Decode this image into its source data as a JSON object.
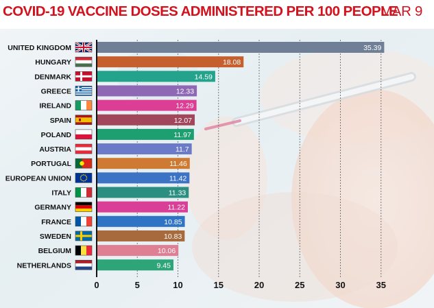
{
  "title": "COVID-19 VACCINE DOSES ADMINISTERED PER 100 PEOPLE",
  "date": "MAR 9",
  "chart_data": {
    "type": "bar",
    "orientation": "horizontal",
    "categories": [
      "UNITED KINGDOM",
      "HUNGARY",
      "DENMARK",
      "GREECE",
      "IRELAND",
      "SPAIN",
      "POLAND",
      "AUSTRIA",
      "PORTUGAL",
      "EUROPEAN UNION",
      "ITALY",
      "GERMANY",
      "FRANCE",
      "SWEDEN",
      "BELGIUM",
      "NETHERLANDS"
    ],
    "values": [
      35.39,
      18.08,
      14.59,
      12.33,
      12.29,
      12.07,
      11.97,
      11.7,
      11.46,
      11.42,
      11.33,
      11.22,
      10.85,
      10.83,
      10.06,
      9.45
    ],
    "value_labels": [
      "35.39",
      "18.08",
      "14.59",
      "12.33",
      "12.29",
      "12.07",
      "11.97",
      "11.7",
      "11.46",
      "11.42",
      "11.33",
      "11.22",
      "10.85",
      "10.83",
      "10.06",
      "9.45"
    ],
    "bar_colors": [
      "#6f7f96",
      "#c65f2e",
      "#23a38c",
      "#8e68b5",
      "#dc3e95",
      "#a1465b",
      "#1e9f72",
      "#6b7bc8",
      "#cf7a33",
      "#3c73c5",
      "#2a8f81",
      "#d93f96",
      "#2f74c4",
      "#a76a3d",
      "#de7f93",
      "#2ea479"
    ],
    "flags": [
      "gb",
      "hu",
      "dk",
      "gr",
      "ie",
      "es",
      "pl",
      "at",
      "pt",
      "eu",
      "it",
      "de",
      "fr",
      "se",
      "be",
      "nl"
    ],
    "x_ticks": [
      0,
      5,
      10,
      15,
      20,
      25,
      30,
      35
    ],
    "xlim": [
      0,
      38
    ],
    "grid": true
  }
}
